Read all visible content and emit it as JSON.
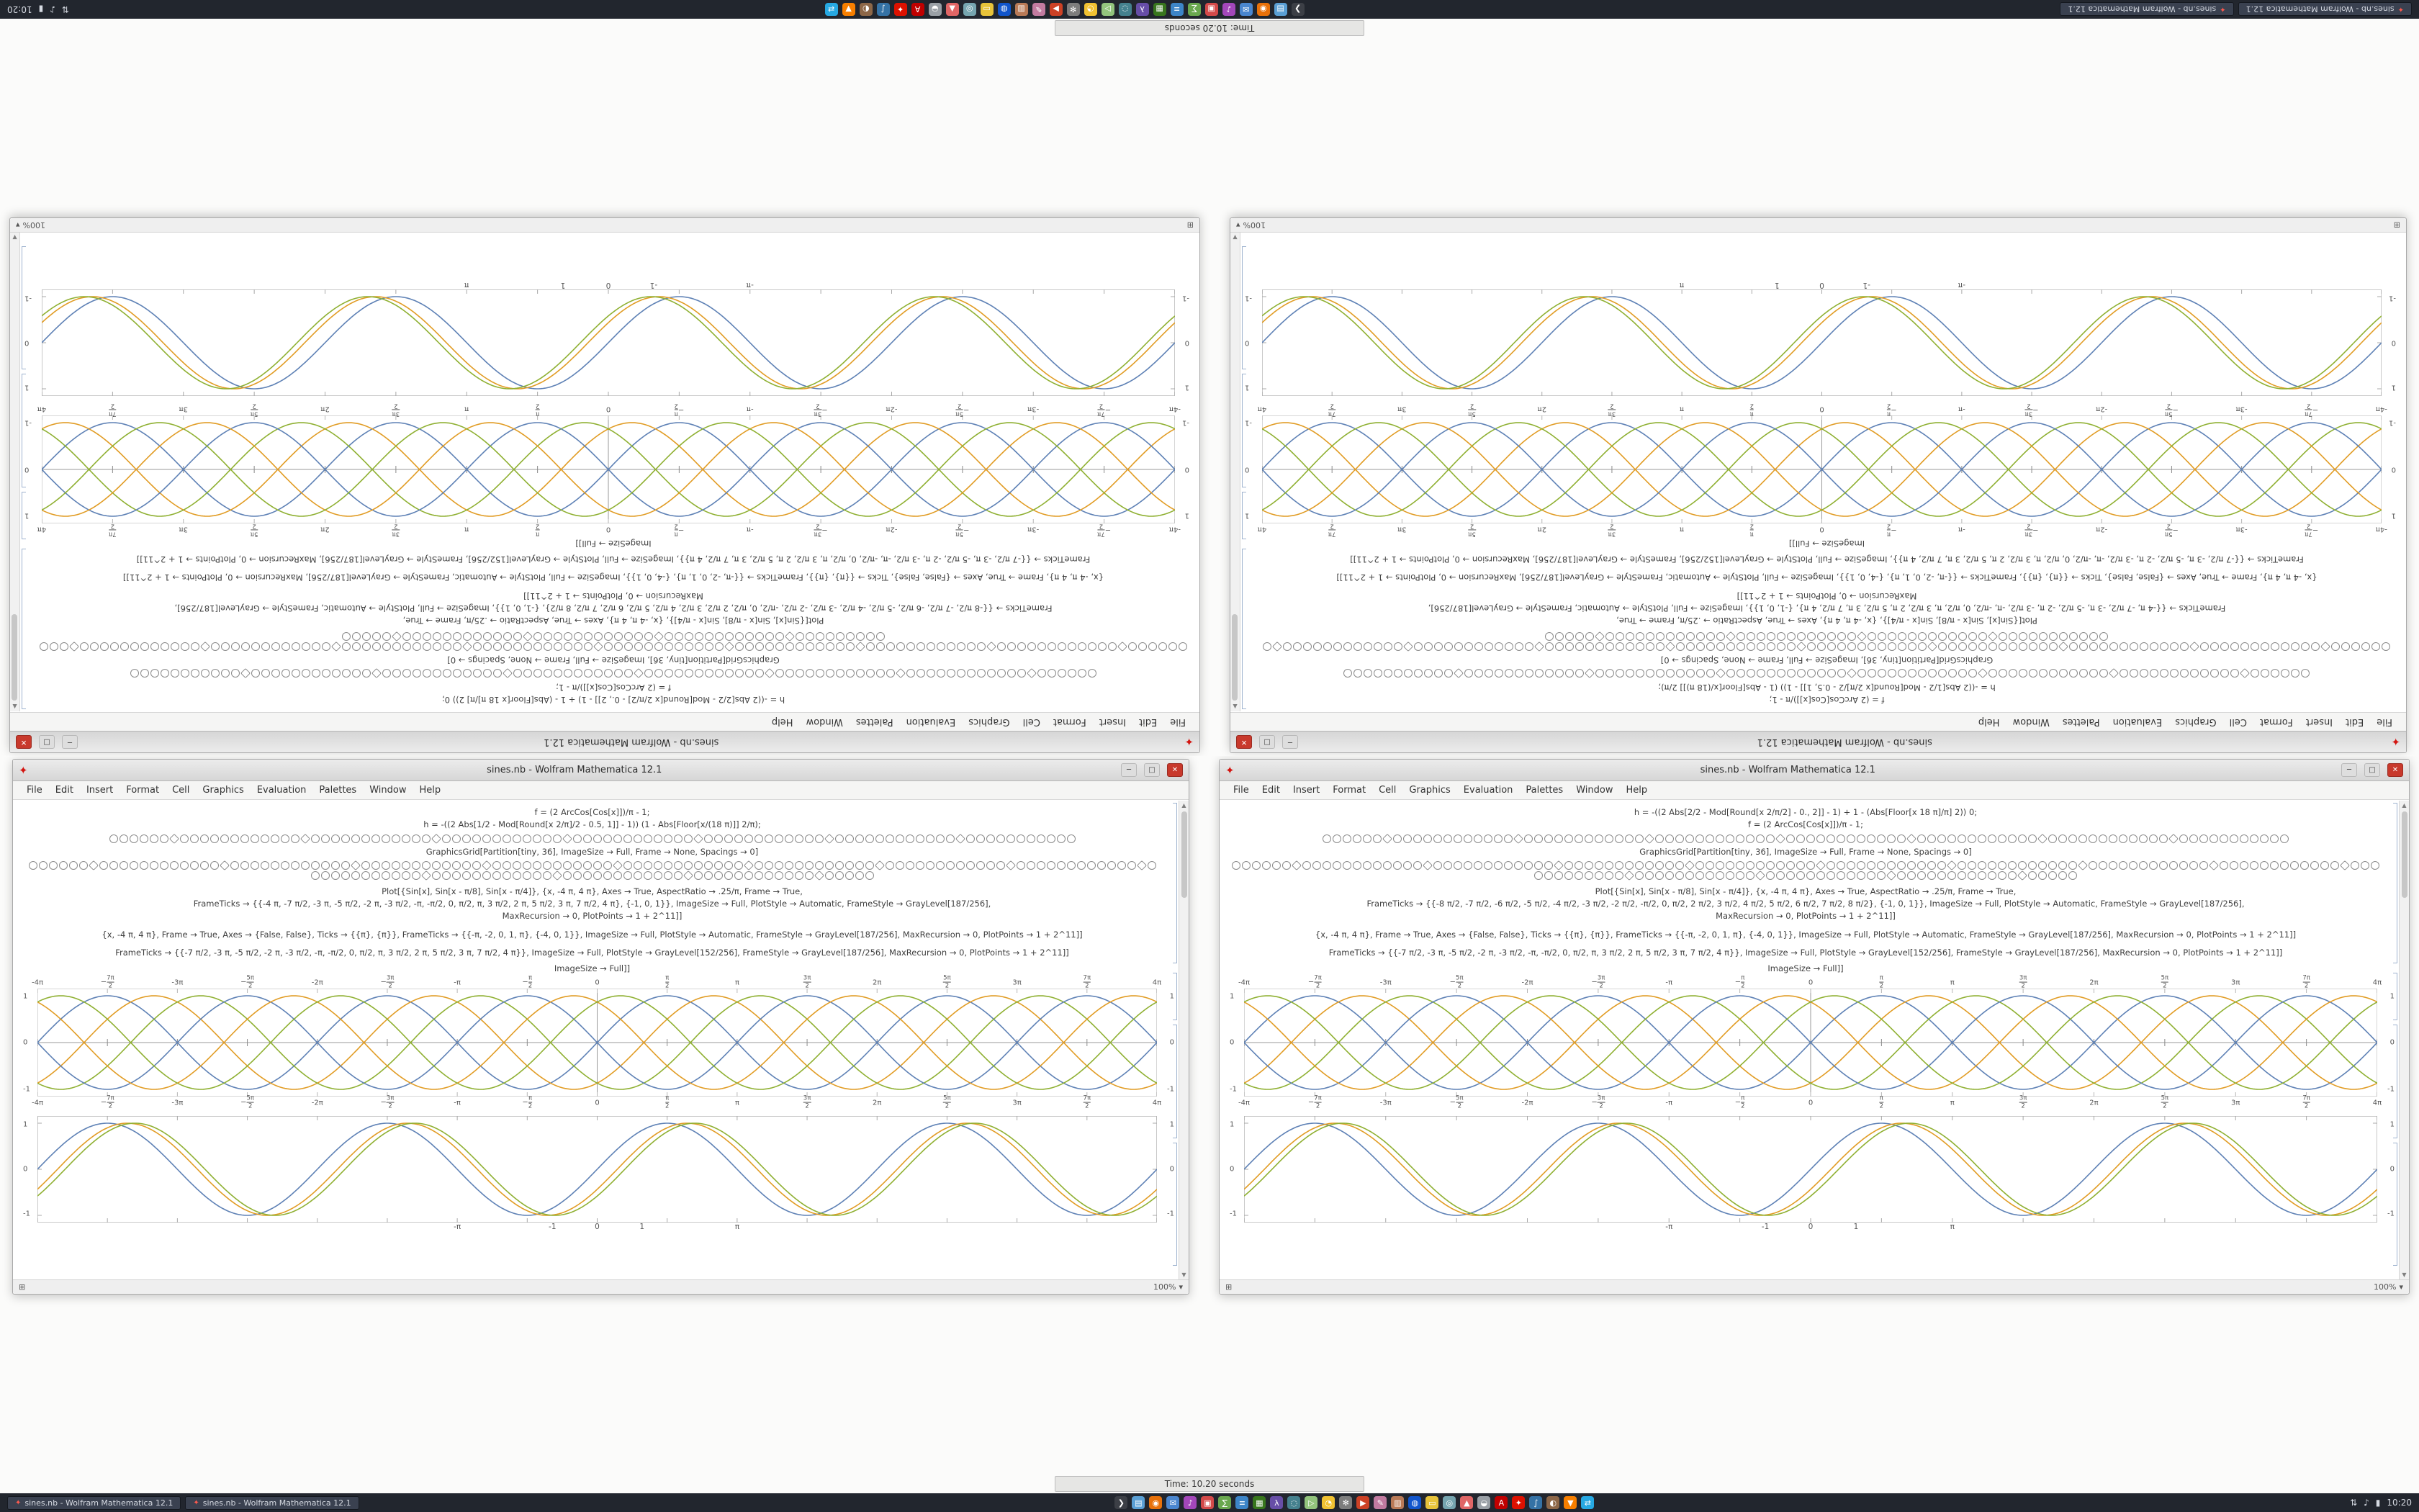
{
  "scene": {
    "strip": {
      "label": "Time: 10.20 seconds"
    },
    "zoom": "100%",
    "glyphs": {
      "spikey": "✦",
      "min": "─",
      "max": "□",
      "close": "✕",
      "scroll_up": "▲",
      "scroll_down": "▼",
      "grip": "⊞",
      "zoom_caret": "▾"
    },
    "menus": [
      "File",
      "Edit",
      "Insert",
      "Format",
      "Cell",
      "Graphics",
      "Evaluation",
      "Palettes",
      "Window",
      "Help"
    ],
    "thumb_rows": [
      96,
      168
    ],
    "windows": [
      {
        "title": "sines.nb - Wolfram Mathematica 12.1",
        "code_a": [
          "f = (2 ArcCos[Cos[x]])/π - 1;",
          "h = -((2 Abs[1/2 - Mod[Round[x 2/π]/2 - 0.5, 1]] - 1)) (1 - Abs[Floor[x/(18 π)]] 2/π);"
        ],
        "code_g": [
          "GraphicsGrid[Partition[tiny, 36], ImageSize → Full, Frame → None, Spacings → 0]"
        ],
        "code_b": [
          "Plot[{Sin[x], Sin[x - π/8], Sin[x - π/4]}, {x, -4 π, 4 π}, Axes → True, AspectRatio → .25/π, Frame → True,",
          "FrameTicks → {{-4 π, -7 π/2, -3 π, -5 π/2, -2 π, -3 π/2, -π, -π/2, 0, π/2, π, 3 π/2, 2 π, 5 π/2, 3 π, 7 π/2, 4 π}, {-1, 0, 1}}, ImageSize → Full, PlotStyle → Automatic, FrameStyle → GrayLevel[187/256],",
          "MaxRecursion → 0, PlotPoints → 1 + 2^11]]"
        ],
        "code_c": [
          "{x, -4 π, 4 π}, Frame → True, Axes → {False, False}, Ticks → {{π}, {π}}, FrameTicks → {{-π, -2, 0, 1, π}, {-4, 0, 1}}, ImageSize → Full, PlotStyle → Automatic, FrameStyle → GrayLevel[187/256], MaxRecursion → 0, PlotPoints → 1 + 2^11]]"
        ],
        "code_d": [
          "FrameTicks → {{-7 π/2, -3 π, -5 π/2, -2 π, -3 π/2, -π, -π/2, 0, π/2, π, 3 π/2, 2 π, 5 π/2, 3 π, 7 π/2, 4 π}}, ImageSize → Full, PlotStyle → GrayLevel[152/256], FrameStyle → GrayLevel[187/256], MaxRecursion → 0, PlotPoints → 1 + 2^11]]"
        ],
        "imagesize_line": "ImageSize → Full]]"
      },
      {
        "title": "sines.nb - Wolfram Mathematica 12.1",
        "code_a": [
          "h = -((2 Abs[2/2 - Mod[Round[x 2/π/2] - 0., 2]] - 1) + 1 - (Abs[Floor[x 18 π]/π] 2)) 0;",
          "f = (2 ArcCos[Cos[x]])/π - 1;"
        ],
        "code_g": [
          "GraphicsGrid[Partition[tiny, 36], ImageSize → Full, Frame → None, Spacings → 0]"
        ],
        "code_b": [
          "Plot[{Sin[x], Sin[x - π/8], Sin[x - π/4]}, {x, -4 π, 4 π}, Axes → True, AspectRatio → .25/π, Frame → True,",
          "FrameTicks → {{-8 π/2, -7 π/2, -6 π/2, -5 π/2, -4 π/2, -3 π/2, -2 π/2, -π/2, 0, π/2, 2 π/2, 3 π/2, 4 π/2, 5 π/2, 6 π/2, 7 π/2, 8 π/2}, {-1, 0, 1}}, ImageSize → Full, PlotStyle → Automatic, FrameStyle → GrayLevel[187/256],",
          "MaxRecursion → 0, PlotPoints → 1 + 2^11]]"
        ],
        "code_c": [
          "{x, -4 π, 4 π}, Frame → True, Axes → {False, False}, Ticks → {{π}, {π}}, FrameTicks → {{-π, -2, 0, 1, π}, {-4, 0, 1}}, ImageSize → Full, PlotStyle → Automatic, FrameStyle → GrayLevel[187/256], MaxRecursion → 0, PlotPoints → 1 + 2^11]]"
        ],
        "code_d": [
          "FrameTicks → {{-7 π/2, -3 π, -5 π/2, -2 π, -3 π/2, -π, -π/2, 0, π/2, π, 3 π/2, 2 π, 5 π/2, 3 π, 7 π/2, 4 π}}, ImageSize → Full, PlotStyle → GrayLevel[152/256], FrameStyle → GrayLevel[187/256], MaxRecursion → 0, PlotPoints → 1 + 2^11]]"
        ],
        "imagesize_line": "ImageSize → Full]]"
      }
    ],
    "plots": {
      "braid": {
        "type": "line",
        "xmin": -12.566370614,
        "xmax": 12.566370614,
        "h": 150,
        "xtick_labels": [
          "-4π",
          "-7π/2",
          "-3π",
          "-5π/2",
          "-2π",
          "-3π/2",
          "-π",
          "-π/2",
          "0",
          "π/2",
          "π",
          "3π/2",
          "2π",
          "5π/2",
          "3π",
          "7π/2",
          "4π"
        ],
        "ytick_labels": [
          "1",
          "0",
          "-1"
        ],
        "ytick_pos": [
          7,
          50,
          93
        ],
        "series": [
          {
            "name": "sin(x)",
            "color": "#5e81b5",
            "phase": 0,
            "sign": 1
          },
          {
            "name": "sin(x-π/3)",
            "color": "#e19c24",
            "phase": 1.0472,
            "sign": 1
          },
          {
            "name": "sin(x-2π/3)",
            "color": "#8fb032",
            "phase": 2.0944,
            "sign": 1
          },
          {
            "name": "-sin(x)",
            "color": "#5e81b5",
            "phase": 0,
            "sign": -1
          },
          {
            "name": "-sin(x-π/3)",
            "color": "#e19c24",
            "phase": 1.0472,
            "sign": -1
          },
          {
            "name": "-sin(x-2π/3)",
            "color": "#8fb032",
            "phase": 2.0944,
            "sign": -1
          }
        ]
      },
      "framed": {
        "type": "line",
        "xmin": -12.566370614,
        "xmax": 12.566370614,
        "h": 148,
        "xtick_labels": [
          {
            "t": "-π",
            "p": 37.5
          },
          {
            "t": "-1",
            "p": 46
          },
          {
            "t": "0",
            "p": 50
          },
          {
            "t": "1",
            "p": 54
          },
          {
            "t": "π",
            "p": 62.5
          }
        ],
        "ytick_labels": [
          "1",
          "0",
          "-1"
        ],
        "ytick_pos": [
          8,
          50,
          92
        ],
        "series": [
          {
            "name": "sin(x)",
            "color": "#5e81b5",
            "phase": 0,
            "sign": 1
          },
          {
            "name": "sin(x-0.45)",
            "color": "#e19c24",
            "phase": 0.45,
            "sign": 1
          },
          {
            "name": "sin(x-0.62)",
            "color": "#8fb032",
            "phase": 0.62,
            "sign": 1
          }
        ]
      }
    },
    "taskbar": {
      "tasks": [
        {
          "label": "sines.nb - Wolfram Mathematica 12.1"
        },
        {
          "label": "sines.nb - Wolfram Mathematica 12.1"
        }
      ],
      "icons": [
        {
          "name": "terminal",
          "color": "#3c3f46",
          "glyph": "❯"
        },
        {
          "name": "files",
          "color": "#5a9fd4",
          "glyph": "▤"
        },
        {
          "name": "browser",
          "color": "#e8710a",
          "glyph": "◉"
        },
        {
          "name": "mail",
          "color": "#4a86cf",
          "glyph": "✉"
        },
        {
          "name": "music",
          "color": "#a347ba",
          "glyph": "♪"
        },
        {
          "name": "photos",
          "color": "#d44a4a",
          "glyph": "▣"
        },
        {
          "name": "calculator",
          "color": "#6aa84f",
          "glyph": "∑"
        },
        {
          "name": "writer",
          "color": "#3d85c8",
          "glyph": "≡"
        },
        {
          "name": "spreadsheet",
          "color": "#38761d",
          "glyph": "▦"
        },
        {
          "name": "code-editor",
          "color": "#674ea7",
          "glyph": "λ"
        },
        {
          "name": "chat",
          "color": "#45818e",
          "glyph": "◌"
        },
        {
          "name": "maps",
          "color": "#93c47d",
          "glyph": "▷"
        },
        {
          "name": "clock-app",
          "color": "#f1c232",
          "glyph": "◔"
        },
        {
          "name": "settings",
          "color": "#7d7d7d",
          "glyph": "✻"
        },
        {
          "name": "video",
          "color": "#cc4125",
          "glyph": "▶"
        },
        {
          "name": "draw",
          "color": "#c27ba0",
          "glyph": "✎"
        },
        {
          "name": "archive",
          "color": "#b97a57",
          "glyph": "▥"
        },
        {
          "name": "web",
          "color": "#1155cc",
          "glyph": "◍"
        },
        {
          "name": "notes",
          "color": "#e7c33a",
          "glyph": "▭"
        },
        {
          "name": "camera",
          "color": "#76a5af",
          "glyph": "◎"
        },
        {
          "name": "games",
          "color": "#e06666",
          "glyph": "▲"
        },
        {
          "name": "disk",
          "color": "#9aa0a6",
          "glyph": "◒"
        },
        {
          "name": "pdf",
          "color": "#c00000",
          "glyph": "A"
        },
        {
          "name": "wolfram",
          "color": "#dd1100",
          "glyph": "✦"
        },
        {
          "name": "python",
          "color": "#3572a5",
          "glyph": "∫"
        },
        {
          "name": "image-editor",
          "color": "#8d6748",
          "glyph": "◐"
        },
        {
          "name": "media",
          "color": "#f77f00",
          "glyph": "▼"
        },
        {
          "name": "network-tool",
          "color": "#27a9e3",
          "glyph": "⇄"
        }
      ],
      "tray": {
        "items": [
          {
            "name": "network",
            "glyph": "⇅"
          },
          {
            "name": "volume",
            "glyph": "♪"
          },
          {
            "name": "battery",
            "glyph": "▮"
          }
        ],
        "clock": "10:20"
      }
    }
  }
}
